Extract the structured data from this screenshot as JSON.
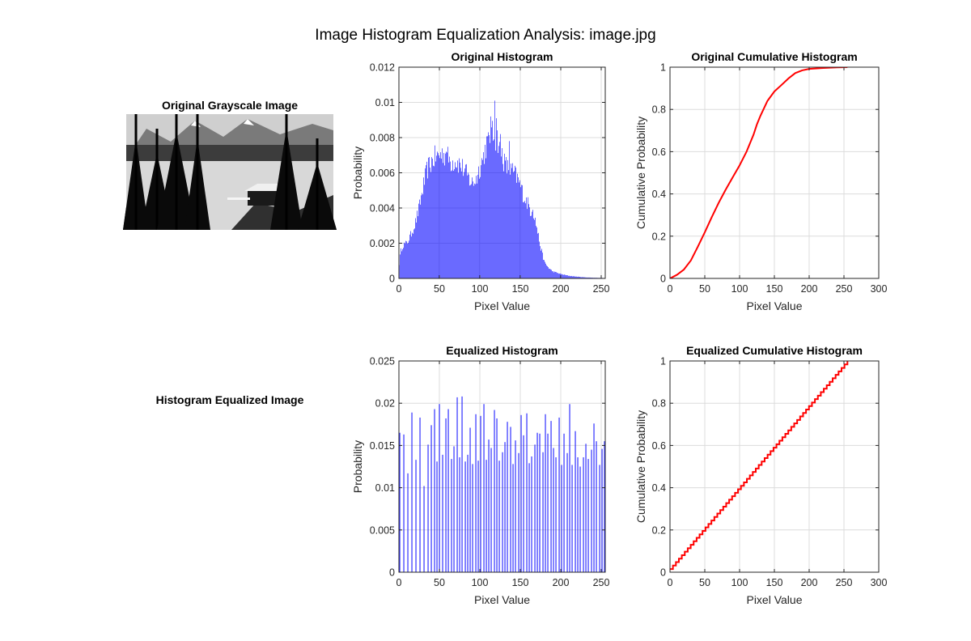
{
  "figure": {
    "title": "Image Histogram Equalization Analysis: image.jpg"
  },
  "images": [
    {
      "title": "Original Grayscale Image",
      "variant": "original"
    },
    {
      "title": "Histogram Equalized Image",
      "variant": "equalized"
    }
  ],
  "chart_data": [
    {
      "id": "orig_hist",
      "type": "bar",
      "title": "Original Histogram",
      "xlabel": "Pixel Value",
      "ylabel": "Probability",
      "xlim": [
        0,
        255
      ],
      "ylim": [
        0,
        0.012
      ],
      "xticks": [
        0,
        50,
        100,
        150,
        200,
        250
      ],
      "yticks": [
        0,
        0.002,
        0.004,
        0.006,
        0.008,
        0.01,
        0.012
      ],
      "ytick_labels": [
        "0",
        "0.002",
        "0.004",
        "0.006",
        "0.008",
        "0.01",
        "0.012"
      ],
      "grid": true,
      "color": "#0000ff",
      "envelope_x": [
        0,
        2,
        5,
        10,
        15,
        20,
        25,
        30,
        35,
        40,
        45,
        50,
        55,
        60,
        65,
        70,
        75,
        80,
        85,
        90,
        95,
        100,
        105,
        108,
        112,
        115,
        118,
        120,
        122,
        125,
        128,
        130,
        135,
        140,
        145,
        150,
        155,
        160,
        163,
        165,
        170,
        175,
        180,
        185,
        190,
        200,
        210,
        220,
        230,
        240,
        250,
        255
      ],
      "envelope_y": [
        0.0006,
        0.0015,
        0.0019,
        0.002,
        0.0025,
        0.0031,
        0.004,
        0.0052,
        0.0062,
        0.0066,
        0.0069,
        0.007,
        0.0071,
        0.0069,
        0.0066,
        0.0067,
        0.0065,
        0.0062,
        0.0058,
        0.0054,
        0.0056,
        0.0063,
        0.007,
        0.0076,
        0.0079,
        0.0082,
        0.008,
        0.0078,
        0.008,
        0.0072,
        0.0071,
        0.0066,
        0.0062,
        0.0061,
        0.0058,
        0.0053,
        0.0046,
        0.0042,
        0.0038,
        0.004,
        0.003,
        0.0018,
        0.0009,
        0.0006,
        0.0004,
        0.00025,
        0.00015,
        0.0001,
        6e-05,
        4e-05,
        3e-05,
        2e-05
      ],
      "spikes": [
        [
          118,
          0.0101
        ],
        [
          113,
          0.0092
        ],
        [
          120,
          0.0091
        ],
        [
          110,
          0.0083
        ],
        [
          125,
          0.0082
        ],
        [
          136,
          0.0078
        ],
        [
          58,
          0.0072
        ],
        [
          47,
          0.0072
        ],
        [
          165,
          0.0039
        ]
      ]
    },
    {
      "id": "orig_cdf",
      "type": "line",
      "title": "Original Cumulative Histogram",
      "xlabel": "Pixel Value",
      "ylabel": "Cumulative Probability",
      "xlim": [
        0,
        300
      ],
      "ylim": [
        0,
        1
      ],
      "xticks": [
        0,
        50,
        100,
        150,
        200,
        250,
        300
      ],
      "yticks": [
        0,
        0.2,
        0.4,
        0.6,
        0.8,
        1
      ],
      "ytick_labels": [
        "0",
        "0.2",
        "0.4",
        "0.6",
        "0.8",
        "1"
      ],
      "grid": true,
      "color": "#ff0000",
      "x": [
        0,
        10,
        20,
        30,
        40,
        50,
        60,
        70,
        80,
        90,
        100,
        110,
        120,
        125,
        130,
        140,
        150,
        160,
        170,
        180,
        190,
        200,
        220,
        240,
        255
      ],
      "y": [
        0,
        0.017,
        0.042,
        0.085,
        0.15,
        0.218,
        0.29,
        0.358,
        0.42,
        0.478,
        0.535,
        0.6,
        0.68,
        0.73,
        0.77,
        0.84,
        0.885,
        0.915,
        0.946,
        0.972,
        0.985,
        0.992,
        0.996,
        0.999,
        1
      ]
    },
    {
      "id": "eq_hist",
      "type": "bar",
      "title": "Equalized Histogram",
      "xlabel": "Pixel Value",
      "ylabel": "Probability",
      "xlim": [
        0,
        255
      ],
      "ylim": [
        0,
        0.025
      ],
      "xticks": [
        0,
        50,
        100,
        150,
        200,
        250
      ],
      "yticks": [
        0,
        0.005,
        0.01,
        0.015,
        0.02,
        0.025
      ],
      "ytick_labels": [
        "0",
        "0.005",
        "0.01",
        "0.015",
        "0.02",
        "0.025"
      ],
      "grid": true,
      "color": "#0000ff",
      "x": [
        1,
        6,
        11,
        16,
        21,
        26,
        31,
        36,
        40,
        44,
        47,
        50,
        54,
        58,
        61,
        65,
        68,
        72,
        75,
        78,
        82,
        85,
        88,
        91,
        95,
        98,
        101,
        105,
        108,
        111,
        114,
        118,
        121,
        124,
        128,
        131,
        134,
        138,
        141,
        144,
        148,
        151,
        154,
        158,
        161,
        164,
        168,
        171,
        174,
        178,
        181,
        184,
        188,
        191,
        194,
        198,
        201,
        204,
        208,
        211,
        214,
        218,
        221,
        224,
        228,
        231,
        234,
        238,
        241,
        244,
        248,
        251,
        254
      ],
      "y": [
        0.0165,
        0.0163,
        0.0117,
        0.0189,
        0.0133,
        0.0183,
        0.0102,
        0.0151,
        0.0174,
        0.0193,
        0.0131,
        0.0199,
        0.0139,
        0.0182,
        0.0193,
        0.0134,
        0.0149,
        0.0207,
        0.0136,
        0.0208,
        0.0131,
        0.0139,
        0.0171,
        0.0128,
        0.0187,
        0.0132,
        0.0185,
        0.0199,
        0.0133,
        0.0157,
        0.0147,
        0.0192,
        0.0182,
        0.0132,
        0.0142,
        0.0154,
        0.0178,
        0.0172,
        0.0128,
        0.0156,
        0.0141,
        0.0186,
        0.0162,
        0.0188,
        0.0129,
        0.0137,
        0.0151,
        0.0165,
        0.0164,
        0.0142,
        0.0187,
        0.0164,
        0.0179,
        0.0147,
        0.0136,
        0.0183,
        0.0127,
        0.0164,
        0.0141,
        0.0199,
        0.0127,
        0.0167,
        0.0136,
        0.0125,
        0.0136,
        0.0152,
        0.0134,
        0.0145,
        0.0176,
        0.0155,
        0.0127,
        0.0146,
        0.0155
      ]
    },
    {
      "id": "eq_cdf",
      "type": "line",
      "title": "Equalized Cumulative Histogram",
      "xlabel": "Pixel Value",
      "ylabel": "Cumulative Probability",
      "xlim": [
        0,
        300
      ],
      "ylim": [
        0,
        1
      ],
      "xticks": [
        0,
        50,
        100,
        150,
        200,
        250,
        300
      ],
      "yticks": [
        0,
        0.2,
        0.4,
        0.6,
        0.8,
        1
      ],
      "ytick_labels": [
        "0",
        "0.2",
        "0.4",
        "0.6",
        "0.8",
        "1"
      ],
      "grid": true,
      "color": "#ff0000",
      "x": [
        0,
        255
      ],
      "y": [
        0.015,
        1
      ]
    }
  ]
}
